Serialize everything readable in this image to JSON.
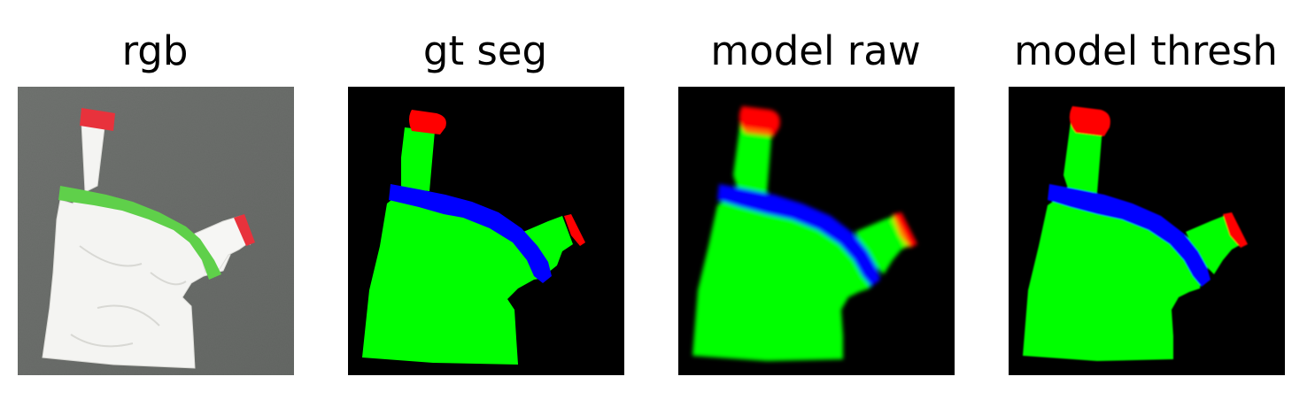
{
  "panels": [
    {
      "title": "rgb"
    },
    {
      "title": "gt seg"
    },
    {
      "title": "model raw"
    },
    {
      "title": "model thresh"
    }
  ],
  "colors": {
    "background": "#ffffff",
    "seg_background": "#000000",
    "seg_body": "#00ff00",
    "seg_band": "#0000ff",
    "seg_tip": "#ff0000",
    "rgb_table": "#6b6e6b",
    "rgb_paper": "#f4f4f2",
    "rgb_tape_green": "#5fd04a",
    "rgb_tape_red": "#e8323c"
  }
}
